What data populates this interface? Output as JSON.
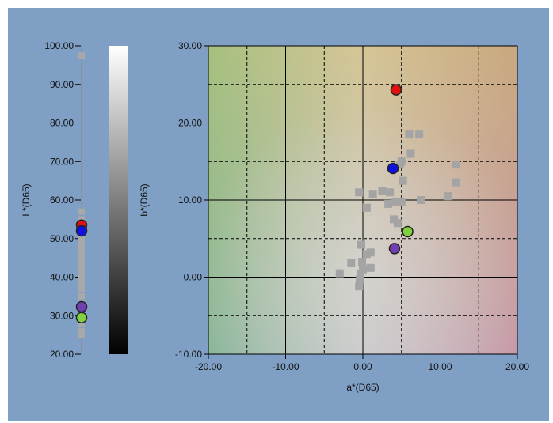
{
  "chart_data": [
    {
      "type": "scatter",
      "orientation": "vertical-strip",
      "ylabel": "L*(D65)",
      "ylim": [
        20,
        100
      ],
      "ticks": [
        "100.00",
        "90.00",
        "80.00",
        "70.00",
        "60.00",
        "50.00",
        "40.00",
        "30.00",
        "20.00"
      ],
      "background_points": [
        25,
        26,
        28,
        30,
        31,
        33,
        35,
        37,
        38,
        39,
        40,
        41,
        42,
        43,
        44,
        45,
        46,
        47,
        48,
        49,
        50,
        51,
        52,
        53,
        55,
        57,
        97.5
      ],
      "highlight_points": [
        {
          "value": 53.5,
          "color": "#e01010"
        },
        {
          "value": 52.0,
          "color": "#1010e0"
        },
        {
          "value": 32.3,
          "color": "#7040b0"
        },
        {
          "value": 29.5,
          "color": "#80d040"
        }
      ]
    },
    {
      "type": "heatmap",
      "orientation": "vertical",
      "description_colors": [
        "#000000",
        "#ffffff"
      ]
    },
    {
      "type": "scatter",
      "xlabel": "a*(D65)",
      "ylabel": "b*(D65)",
      "xlim": [
        -20,
        20
      ],
      "ylim": [
        -10,
        30
      ],
      "xticks": [
        "-20.00",
        "-10.00",
        "0.00",
        "10.00",
        "20.00"
      ],
      "yticks": [
        "30.00",
        "20.00",
        "10.00",
        "0.00",
        "-10.00"
      ],
      "grid": true,
      "background_points": [
        [
          -3,
          0.5
        ],
        [
          -1.5,
          1.8
        ],
        [
          -0.5,
          -1.2
        ],
        [
          -0.4,
          -0.3
        ],
        [
          -0.3,
          0.4
        ],
        [
          0,
          1
        ],
        [
          -0.1,
          2
        ],
        [
          1,
          1.2
        ],
        [
          0.5,
          3
        ],
        [
          1,
          3.2
        ],
        [
          -0.2,
          4.2
        ],
        [
          0.5,
          9
        ],
        [
          -0.5,
          11
        ],
        [
          1.3,
          10.8
        ],
        [
          2.5,
          11.2
        ],
        [
          3.5,
          11
        ],
        [
          3.3,
          9.5
        ],
        [
          4.2,
          9.8
        ],
        [
          5,
          9.7
        ],
        [
          4,
          7.5
        ],
        [
          4.5,
          7
        ],
        [
          5,
          15
        ],
        [
          6.2,
          16
        ],
        [
          6,
          18.5
        ],
        [
          7.3,
          18.5
        ],
        [
          4.8,
          14.6
        ],
        [
          5.2,
          12.5
        ],
        [
          7.5,
          10
        ],
        [
          11,
          10.5
        ],
        [
          12,
          12.3
        ],
        [
          12,
          14.6
        ]
      ],
      "highlight_points": [
        {
          "x": 4.3,
          "y": 24.3,
          "color": "#e01010"
        },
        {
          "x": 3.9,
          "y": 14.1,
          "color": "#1010e0"
        },
        {
          "x": 5.8,
          "y": 5.9,
          "color": "#80d040"
        },
        {
          "x": 4.1,
          "y": 3.7,
          "color": "#7040b0"
        }
      ]
    }
  ]
}
